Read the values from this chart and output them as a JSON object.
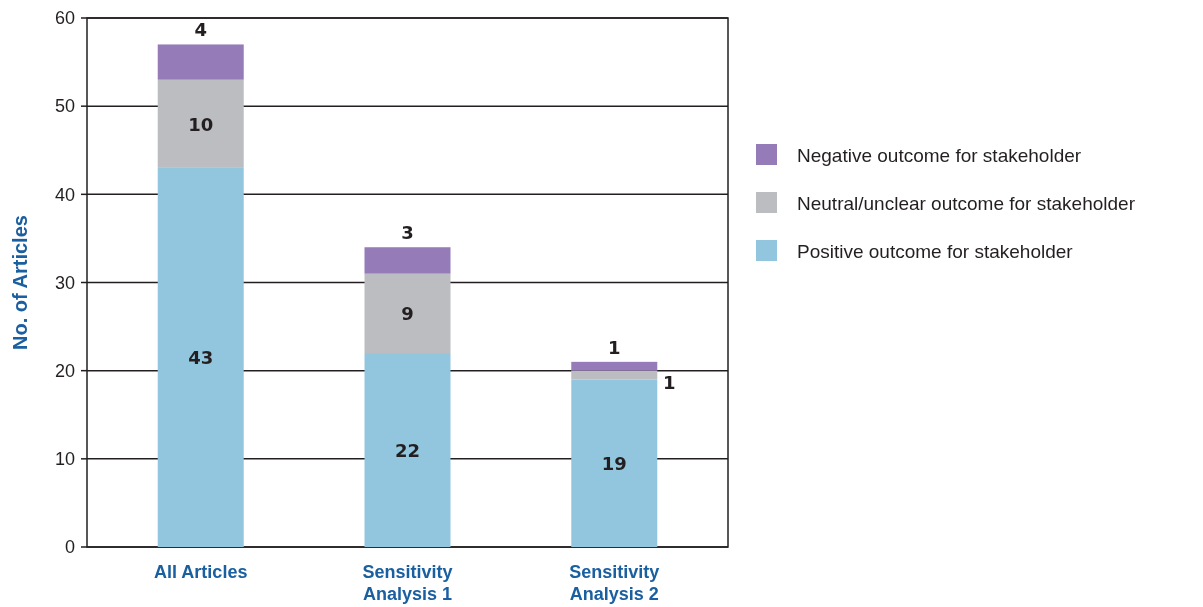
{
  "chart_data": {
    "type": "bar",
    "stacked": true,
    "ylabel": "No. of Articles",
    "categories": [
      "All Articles",
      "Sensitivity Analysis 1",
      "Sensitivity Analysis 2"
    ],
    "series": [
      {
        "name": "Positive outcome for stakeholder",
        "color": "#92c6df",
        "values": [
          43,
          22,
          19
        ]
      },
      {
        "name": "Neutral/unclear outcome for stakeholder",
        "color": "#bcbdc0",
        "values": [
          10,
          9,
          1
        ]
      },
      {
        "name": "Negative outcome for stakeholder",
        "color": "#957cb8",
        "values": [
          4,
          3,
          1
        ]
      }
    ],
    "ylim": [
      0,
      60
    ],
    "yticks": [
      0,
      10,
      20,
      30,
      40,
      50,
      60
    ],
    "grid": "y",
    "legend": "right",
    "data_labels": true
  }
}
